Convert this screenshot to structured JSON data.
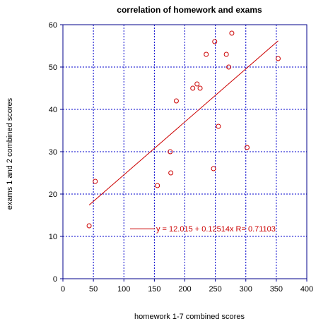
{
  "chart_data": {
    "type": "scatter",
    "title": "correlation of homework and exams",
    "xlabel": "homework 1-7 combined scores",
    "ylabel": "exams 1 and 2 combined scores",
    "xlim": [
      0,
      400
    ],
    "ylim": [
      0,
      60
    ],
    "x_ticks": [
      0,
      50,
      100,
      150,
      200,
      250,
      300,
      350,
      400
    ],
    "y_ticks": [
      0,
      10,
      20,
      30,
      40,
      50,
      60
    ],
    "grid": true,
    "series": [
      {
        "x": [
          43,
          53,
          155,
          176,
          177,
          186,
          213,
          220,
          225,
          235,
          247,
          249,
          255,
          268,
          272,
          277,
          302,
          353
        ],
        "y": [
          12.5,
          23,
          22,
          30,
          25,
          42,
          45,
          46,
          45,
          53,
          26,
          56,
          36,
          53,
          50,
          58,
          31,
          52
        ]
      }
    ],
    "fit_line": {
      "intercept": 12.015,
      "slope": 0.12514,
      "x_range": [
        43,
        353
      ],
      "legend": "y = 12.015 + 0.12514x   R= 0.71103"
    },
    "colors": {
      "plot_border": "#00008b",
      "grid": "#0000cc",
      "points": "#cc0000",
      "fit_line": "#cc0000",
      "legend_text": "#cc0000"
    }
  }
}
